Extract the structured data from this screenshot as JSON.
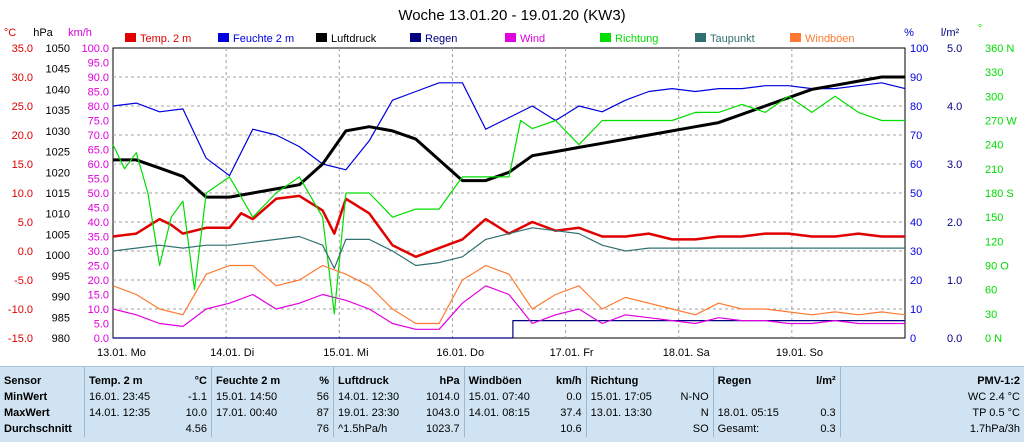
{
  "title": "Woche 13.01.20 - 19.01.20 (KW3)",
  "colors": {
    "temp": "#e00000",
    "humidity": "#0000e0",
    "pressure": "#000000",
    "rain": "#000080",
    "wind": "#e000e0",
    "direction": "#00dd00",
    "dewpoint": "#307070",
    "gust": "#ff7a30",
    "grid": "#a0a0a0"
  },
  "legend": [
    {
      "label": "Temp. 2 m",
      "color": "#e00000"
    },
    {
      "label": "Feuchte  2 m",
      "color": "#0000e0"
    },
    {
      "label": "Luftdruck",
      "color": "#000000"
    },
    {
      "label": "Regen",
      "color": "#000080"
    },
    {
      "label": "Wind",
      "color": "#e000e0"
    },
    {
      "label": "Richtung",
      "color": "#00dd00"
    },
    {
      "label": "Taupunkt",
      "color": "#307070"
    },
    {
      "label": "Windböen",
      "color": "#ff7a30"
    }
  ],
  "axes": {
    "temp": {
      "unit": "°C",
      "ticks": [
        "35.0",
        "30.0",
        "25.0",
        "20.0",
        "15.0",
        "10.0",
        "5.0",
        "0.0",
        "-5.0",
        "-10.0",
        "-15.0"
      ]
    },
    "pressure": {
      "unit": "hPa",
      "ticks": [
        "1050",
        "1045",
        "1040",
        "1035",
        "1030",
        "1025",
        "1020",
        "1015",
        "1010",
        "1005",
        "1000",
        "995",
        "990",
        "985",
        "980"
      ]
    },
    "wind": {
      "unit": "km/h",
      "ticks": [
        "100.0",
        "95.0",
        "90.0",
        "85.0",
        "80.0",
        "75.0",
        "70.0",
        "65.0",
        "60.0",
        "55.0",
        "50.0",
        "45.0",
        "40.0",
        "35.0",
        "30.0",
        "25.0",
        "20.0",
        "15.0",
        "10.0",
        "5.0",
        "0.0"
      ]
    },
    "humidity": {
      "unit": "%",
      "ticks": [
        "100",
        "90",
        "80",
        "70",
        "60",
        "50",
        "40",
        "30",
        "20",
        "10",
        "0"
      ]
    },
    "rain": {
      "unit": "l/m²",
      "ticks": [
        "5.0",
        "4.0",
        "3.0",
        "2.0",
        "1.0",
        "0.0"
      ]
    },
    "direction": {
      "unit": "°",
      "ticks": [
        "360 N",
        "330",
        "300",
        "270 W",
        "240",
        "210",
        "180 S",
        "150",
        "120",
        "90 O",
        "60",
        "30",
        "0 N"
      ]
    },
    "x_labels": [
      "13.01. Mo",
      "14.01. Di",
      "15.01. Mi",
      "16.01. Do",
      "17.01. Fr",
      "18.01. Sa",
      "19.01. So"
    ]
  },
  "chart_data": {
    "type": "line",
    "title": "Woche 13.01.20 - 19.01.20 (KW3)",
    "x_unit": "hours since 13.01. 00:00",
    "series": [
      {
        "name": "Temp. 2 m",
        "axis": "temp",
        "values": [
          [
            0,
            2.5
          ],
          [
            12,
            3
          ],
          [
            24,
            5.5
          ],
          [
            30,
            4.5
          ],
          [
            36,
            3
          ],
          [
            48,
            4
          ],
          [
            60,
            4
          ],
          [
            66,
            6.5
          ],
          [
            72,
            5.5
          ],
          [
            84,
            9
          ],
          [
            96,
            9.5
          ],
          [
            108,
            7
          ],
          [
            114,
            3
          ],
          [
            120,
            9
          ],
          [
            132,
            6.5
          ],
          [
            144,
            1
          ],
          [
            156,
            -1
          ],
          [
            168,
            0.5
          ],
          [
            180,
            2
          ],
          [
            192,
            5.5
          ],
          [
            204,
            3
          ],
          [
            216,
            5
          ],
          [
            228,
            3.5
          ],
          [
            240,
            4
          ],
          [
            252,
            2.5
          ],
          [
            264,
            2.5
          ],
          [
            276,
            3
          ],
          [
            288,
            2
          ],
          [
            300,
            2
          ],
          [
            312,
            2.5
          ],
          [
            324,
            2.5
          ],
          [
            336,
            3
          ],
          [
            348,
            3
          ],
          [
            360,
            2.5
          ],
          [
            372,
            2.5
          ],
          [
            384,
            3
          ],
          [
            396,
            2.5
          ],
          [
            408,
            2.5
          ]
        ]
      },
      {
        "name": "Feuchte  2 m",
        "axis": "humidity",
        "values": [
          [
            0,
            80
          ],
          [
            12,
            81
          ],
          [
            24,
            78
          ],
          [
            36,
            79
          ],
          [
            48,
            62
          ],
          [
            60,
            56
          ],
          [
            72,
            72
          ],
          [
            84,
            70
          ],
          [
            96,
            66
          ],
          [
            108,
            60
          ],
          [
            120,
            58
          ],
          [
            132,
            68
          ],
          [
            144,
            82
          ],
          [
            156,
            85
          ],
          [
            168,
            88
          ],
          [
            180,
            88
          ],
          [
            192,
            72
          ],
          [
            204,
            76
          ],
          [
            216,
            80
          ],
          [
            228,
            75
          ],
          [
            240,
            80
          ],
          [
            252,
            78
          ],
          [
            264,
            82
          ],
          [
            276,
            85
          ],
          [
            288,
            86
          ],
          [
            300,
            85
          ],
          [
            312,
            86
          ],
          [
            324,
            86
          ],
          [
            336,
            87
          ],
          [
            348,
            87
          ],
          [
            360,
            86
          ],
          [
            372,
            86
          ],
          [
            384,
            87
          ],
          [
            396,
            88
          ],
          [
            408,
            86
          ]
        ]
      },
      {
        "name": "Luftdruck",
        "axis": "pressure",
        "values": [
          [
            0,
            1023
          ],
          [
            12,
            1023
          ],
          [
            24,
            1021
          ],
          [
            36,
            1019
          ],
          [
            48,
            1014
          ],
          [
            60,
            1014
          ],
          [
            72,
            1015
          ],
          [
            84,
            1016
          ],
          [
            96,
            1017
          ],
          [
            108,
            1022
          ],
          [
            120,
            1030
          ],
          [
            132,
            1031
          ],
          [
            144,
            1030
          ],
          [
            156,
            1028
          ],
          [
            168,
            1023
          ],
          [
            180,
            1018
          ],
          [
            192,
            1018
          ],
          [
            204,
            1020
          ],
          [
            216,
            1024
          ],
          [
            228,
            1025
          ],
          [
            240,
            1026
          ],
          [
            252,
            1027
          ],
          [
            264,
            1028
          ],
          [
            276,
            1029
          ],
          [
            288,
            1030
          ],
          [
            300,
            1031
          ],
          [
            312,
            1032
          ],
          [
            324,
            1034
          ],
          [
            336,
            1036
          ],
          [
            348,
            1038
          ],
          [
            360,
            1040
          ],
          [
            372,
            1041
          ],
          [
            384,
            1042
          ],
          [
            396,
            1043
          ],
          [
            408,
            1043
          ]
        ]
      },
      {
        "name": "Regen",
        "axis": "rain",
        "values": [
          [
            0,
            0
          ],
          [
            206,
            0
          ],
          [
            206,
            0.3
          ],
          [
            408,
            0.3
          ]
        ]
      },
      {
        "name": "Wind",
        "axis": "wind",
        "values": [
          [
            0,
            10
          ],
          [
            12,
            8
          ],
          [
            24,
            5
          ],
          [
            36,
            4
          ],
          [
            48,
            10
          ],
          [
            60,
            12
          ],
          [
            72,
            15
          ],
          [
            84,
            10
          ],
          [
            96,
            12
          ],
          [
            108,
            15
          ],
          [
            120,
            13
          ],
          [
            132,
            10
          ],
          [
            144,
            5
          ],
          [
            156,
            3
          ],
          [
            168,
            3
          ],
          [
            180,
            12
          ],
          [
            192,
            18
          ],
          [
            204,
            15
          ],
          [
            216,
            5
          ],
          [
            228,
            8
          ],
          [
            240,
            10
          ],
          [
            252,
            5
          ],
          [
            264,
            8
          ],
          [
            276,
            7
          ],
          [
            288,
            6
          ],
          [
            300,
            5
          ],
          [
            312,
            7
          ],
          [
            324,
            6
          ],
          [
            336,
            6
          ],
          [
            348,
            5
          ],
          [
            360,
            5
          ],
          [
            372,
            6
          ],
          [
            384,
            5
          ],
          [
            396,
            5
          ],
          [
            408,
            5
          ]
        ]
      },
      {
        "name": "Richtung",
        "axis": "direction",
        "values": [
          [
            0,
            240
          ],
          [
            6,
            210
          ],
          [
            12,
            230
          ],
          [
            18,
            180
          ],
          [
            24,
            90
          ],
          [
            30,
            150
          ],
          [
            36,
            170
          ],
          [
            42,
            60
          ],
          [
            48,
            180
          ],
          [
            60,
            200
          ],
          [
            72,
            150
          ],
          [
            84,
            180
          ],
          [
            96,
            200
          ],
          [
            108,
            150
          ],
          [
            114,
            30
          ],
          [
            120,
            180
          ],
          [
            132,
            180
          ],
          [
            144,
            150
          ],
          [
            156,
            160
          ],
          [
            168,
            160
          ],
          [
            180,
            200
          ],
          [
            192,
            200
          ],
          [
            204,
            200
          ],
          [
            210,
            270
          ],
          [
            216,
            260
          ],
          [
            228,
            270
          ],
          [
            240,
            240
          ],
          [
            252,
            270
          ],
          [
            264,
            270
          ],
          [
            276,
            270
          ],
          [
            288,
            270
          ],
          [
            300,
            280
          ],
          [
            312,
            280
          ],
          [
            324,
            290
          ],
          [
            336,
            280
          ],
          [
            348,
            300
          ],
          [
            360,
            280
          ],
          [
            372,
            300
          ],
          [
            384,
            280
          ],
          [
            396,
            270
          ],
          [
            408,
            270
          ]
        ]
      },
      {
        "name": "Taupunkt",
        "axis": "temp",
        "values": [
          [
            0,
            0
          ],
          [
            12,
            0.5
          ],
          [
            24,
            1
          ],
          [
            36,
            0.5
          ],
          [
            48,
            1
          ],
          [
            60,
            1
          ],
          [
            72,
            1.5
          ],
          [
            84,
            2
          ],
          [
            96,
            2.5
          ],
          [
            108,
            1
          ],
          [
            114,
            -3
          ],
          [
            120,
            2
          ],
          [
            132,
            2
          ],
          [
            144,
            0
          ],
          [
            156,
            -2.5
          ],
          [
            168,
            -2
          ],
          [
            180,
            -1
          ],
          [
            192,
            2
          ],
          [
            204,
            3
          ],
          [
            216,
            4
          ],
          [
            228,
            3.5
          ],
          [
            240,
            3
          ],
          [
            252,
            1
          ],
          [
            264,
            0
          ],
          [
            276,
            0.5
          ],
          [
            288,
            0.5
          ],
          [
            300,
            0.5
          ],
          [
            312,
            0.5
          ],
          [
            324,
            0.5
          ],
          [
            336,
            0.5
          ],
          [
            348,
            0.5
          ],
          [
            360,
            0.5
          ],
          [
            372,
            0.5
          ],
          [
            384,
            0.5
          ],
          [
            396,
            0.5
          ],
          [
            408,
            0.5
          ]
        ]
      },
      {
        "name": "Windböen",
        "axis": "wind",
        "values": [
          [
            0,
            18
          ],
          [
            12,
            15
          ],
          [
            24,
            10
          ],
          [
            36,
            8
          ],
          [
            48,
            22
          ],
          [
            60,
            25
          ],
          [
            72,
            25
          ],
          [
            84,
            18
          ],
          [
            96,
            20
          ],
          [
            108,
            25
          ],
          [
            120,
            22
          ],
          [
            132,
            18
          ],
          [
            144,
            10
          ],
          [
            156,
            5
          ],
          [
            168,
            5
          ],
          [
            180,
            20
          ],
          [
            192,
            25
          ],
          [
            204,
            22
          ],
          [
            216,
            10
          ],
          [
            228,
            15
          ],
          [
            240,
            18
          ],
          [
            252,
            10
          ],
          [
            264,
            14
          ],
          [
            276,
            12
          ],
          [
            288,
            10
          ],
          [
            300,
            8
          ],
          [
            312,
            12
          ],
          [
            324,
            10
          ],
          [
            336,
            10
          ],
          [
            348,
            9
          ],
          [
            360,
            8
          ],
          [
            372,
            9
          ],
          [
            384,
            8
          ],
          [
            396,
            9
          ],
          [
            408,
            8
          ]
        ]
      }
    ]
  },
  "stats": {
    "headers": {
      "sensor": "Sensor",
      "temp": "Temp.  2 m",
      "temp_unit": "°C",
      "hum": "Feuchte  2 m",
      "hum_unit": "%",
      "press": "Luftdruck",
      "press_unit": "hPa",
      "gust": "Windböen",
      "gust_unit": "km/h",
      "dir": "Richtung",
      "rain": "Regen",
      "rain_unit": "l/m²",
      "pmv": "PMV-1:2"
    },
    "rows": [
      {
        "label": "MinWert",
        "temp_t": "16.01.  23:45",
        "temp_v": "-1.1",
        "hum_t": "15.01.  14:50",
        "hum_v": "56",
        "press_t": "14.01.  12:30",
        "press_v": "1014.0",
        "gust_t": "15.01.  07:40",
        "gust_v": "0.0",
        "dir_t": "15.01.  17:05",
        "dir_v": "N-NO",
        "rain_t": "",
        "rain_v": "",
        "pmv": "WC 2.4 °C"
      },
      {
        "label": "MaxWert",
        "temp_t": "14.01.  12:35",
        "temp_v": "10.0",
        "hum_t": "17.01.  00:40",
        "hum_v": "87",
        "press_t": "19.01.  23:30",
        "press_v": "1043.0",
        "gust_t": "14.01.  08:15",
        "gust_v": "37.4",
        "dir_t": "13.01.  13:30",
        "dir_v": "N",
        "rain_t": "18.01.  05:15",
        "rain_v": "0.3",
        "pmv": "TP 0.5 °C"
      },
      {
        "label": "Durchschnitt",
        "temp_t": "",
        "temp_v": "4.56",
        "hum_t": "",
        "hum_v": "76",
        "press_t": "^1.5hPa/h",
        "press_v": "1023.7",
        "gust_t": "",
        "gust_v": "10.6",
        "dir_t": "",
        "dir_v": "SO",
        "rain_t": "Gesamt:",
        "rain_v": "0.3",
        "pmv": "1.7hPa/3h"
      }
    ]
  }
}
